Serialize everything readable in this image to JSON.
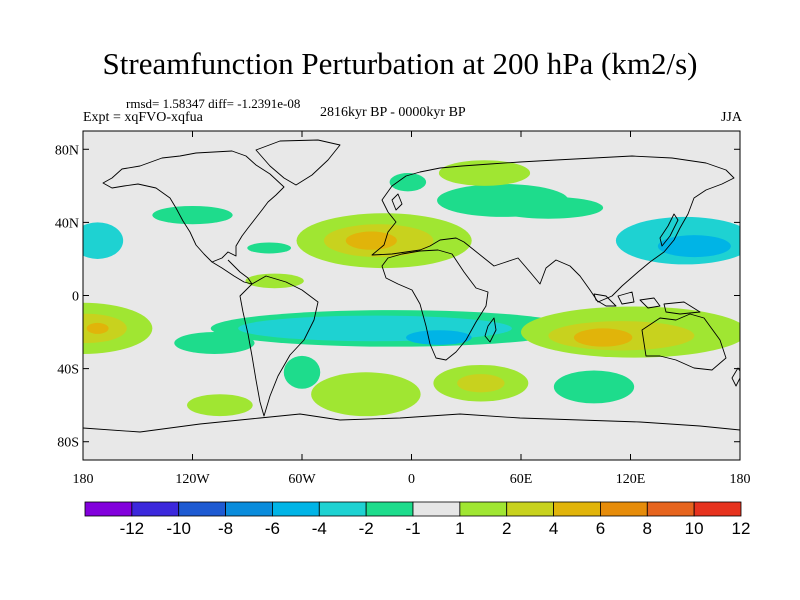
{
  "title": "Streamfunction Perturbation at 200 hPa (km2/s)",
  "stats": "rmsd= 1.58347 diff= -1.2391e-08",
  "experiment": "Expt = xqFVO-xqfua",
  "period": "2816kyr BP - 0000kyr BP",
  "season": "JJA",
  "colors": {
    "background": "#e8e8e8",
    "coastline": "#000000",
    "frame": "#000000"
  },
  "map": {
    "lon_range": [
      -180,
      180
    ],
    "lat_range": [
      -90,
      90
    ],
    "lat_ticks": [
      {
        "value": 80,
        "label": "80N"
      },
      {
        "value": 40,
        "label": "40N"
      },
      {
        "value": 0,
        "label": "0"
      },
      {
        "value": -40,
        "label": "40S"
      },
      {
        "value": -80,
        "label": "80S"
      }
    ],
    "lon_ticks": [
      {
        "value": -180,
        "label": "180"
      },
      {
        "value": -120,
        "label": "120W"
      },
      {
        "value": -60,
        "label": "60W"
      },
      {
        "value": 0,
        "label": "0"
      },
      {
        "value": 60,
        "label": "60E"
      },
      {
        "value": 120,
        "label": "120E"
      },
      {
        "value": 180,
        "label": "180"
      }
    ]
  },
  "colorbar": {
    "bins": [
      {
        "color": "#8200dc"
      },
      {
        "color": "#3c28dc"
      },
      {
        "color": "#1e5ad2"
      },
      {
        "color": "#0a8cdc"
      },
      {
        "color": "#00b4e6"
      },
      {
        "color": "#1ed2d2"
      },
      {
        "color": "#1edc8c"
      },
      {
        "color": "#e6e6e6"
      },
      {
        "color": "#a0e632"
      },
      {
        "color": "#c8d21e"
      },
      {
        "color": "#e1b40a"
      },
      {
        "color": "#e68c0a"
      },
      {
        "color": "#e6641e"
      },
      {
        "color": "#e6321e"
      }
    ],
    "labels": [
      "-12",
      "-10",
      "-8",
      "-6",
      "-4",
      "-2",
      "-1",
      "1",
      "2",
      "4",
      "6",
      "8",
      "10",
      "12"
    ]
  },
  "chart_data": {
    "type": "contour-map",
    "variable": "Streamfunction Perturbation at 200 hPa",
    "units": "km2/s",
    "levels": [
      -12,
      -10,
      -8,
      -6,
      -4,
      -2,
      -1,
      1,
      2,
      4,
      6,
      8,
      10,
      12
    ],
    "features": [
      {
        "id": "n-atlantic-africa-high",
        "lon": -15,
        "lat": 30,
        "rx": 48,
        "ry": 15,
        "level": 2
      },
      {
        "id": "n-atlantic-africa-high-core",
        "lon": -18,
        "lat": 30,
        "rx": 30,
        "ry": 9,
        "level": 4
      },
      {
        "id": "n-atlantic-africa-high-peak",
        "lon": -22,
        "lat": 30,
        "rx": 14,
        "ry": 5,
        "level": 6
      },
      {
        "id": "eastern-europe-low",
        "lon": 50,
        "lat": 52,
        "rx": 36,
        "ry": 9,
        "level": -1
      },
      {
        "id": "arctic-russia-high",
        "lon": 40,
        "lat": 67,
        "rx": 25,
        "ry": 7,
        "level": 1
      },
      {
        "id": "scandinavia-low",
        "lon": -2,
        "lat": 62,
        "rx": 10,
        "ry": 5,
        "level": -1
      },
      {
        "id": "central-asia-low",
        "lon": 75,
        "lat": 48,
        "rx": 30,
        "ry": 6,
        "level": -1
      },
      {
        "id": "nw-pacific-low",
        "lon": 150,
        "lat": 30,
        "rx": 38,
        "ry": 13,
        "level": -2
      },
      {
        "id": "nw-pacific-low-core",
        "lon": 155,
        "lat": 27,
        "rx": 20,
        "ry": 6,
        "level": -4
      },
      {
        "id": "ne-pacific-low",
        "lon": -172,
        "lat": 30,
        "rx": 14,
        "ry": 10,
        "level": -2
      },
      {
        "id": "north-america-low",
        "lon": -120,
        "lat": 44,
        "rx": 22,
        "ry": 5,
        "level": -1
      },
      {
        "id": "caribbean-low",
        "lon": -78,
        "lat": 26,
        "rx": 12,
        "ry": 3,
        "level": -1
      },
      {
        "id": "tropical-america-high",
        "lon": -75,
        "lat": 8,
        "rx": 16,
        "ry": 4,
        "level": 2
      },
      {
        "id": "sh-subtropical-low-band",
        "lon": -10,
        "lat": -18,
        "rx": 100,
        "ry": 10,
        "level": -1
      },
      {
        "id": "sh-subtropical-low-core",
        "lon": -20,
        "lat": -18,
        "rx": 75,
        "ry": 7,
        "level": -2
      },
      {
        "id": "south-atlantic-low-core",
        "lon": 15,
        "lat": -23,
        "rx": 18,
        "ry": 4,
        "level": -4
      },
      {
        "id": "south-pacific-high",
        "lon": -180,
        "lat": -18,
        "rx": 38,
        "ry": 14,
        "level": 2
      },
      {
        "id": "south-pacific-high-core",
        "lon": -178,
        "lat": -18,
        "rx": 22,
        "ry": 8,
        "level": 4
      },
      {
        "id": "south-pacific-high-peak",
        "lon": -172,
        "lat": -18,
        "rx": 6,
        "ry": 3,
        "level": 6
      },
      {
        "id": "australia-high",
        "lon": 122,
        "lat": -20,
        "rx": 62,
        "ry": 14,
        "level": 2
      },
      {
        "id": "australia-high-core",
        "lon": 115,
        "lat": -22,
        "rx": 40,
        "ry": 8,
        "level": 4
      },
      {
        "id": "australia-high-peak",
        "lon": 105,
        "lat": -23,
        "rx": 16,
        "ry": 5,
        "level": 6
      },
      {
        "id": "south-indian-high",
        "lon": 38,
        "lat": -48,
        "rx": 26,
        "ry": 10,
        "level": 2
      },
      {
        "id": "south-indian-high-core",
        "lon": 38,
        "lat": -48,
        "rx": 13,
        "ry": 5,
        "level": 4
      },
      {
        "id": "southern-ocean-low",
        "lon": 100,
        "lat": -50,
        "rx": 22,
        "ry": 9,
        "level": -1
      },
      {
        "id": "southern-ocean-south-atlantic-high",
        "lon": -25,
        "lat": -54,
        "rx": 30,
        "ry": 12,
        "level": 2
      },
      {
        "id": "south-america-low",
        "lon": -60,
        "lat": -42,
        "rx": 10,
        "ry": 9,
        "level": -1
      },
      {
        "id": "se-pacific-high",
        "lon": -105,
        "lat": -60,
        "rx": 18,
        "ry": 6,
        "level": 2
      },
      {
        "id": "east-pacific-low",
        "lon": -108,
        "lat": -26,
        "rx": 22,
        "ry": 6,
        "level": -1
      }
    ]
  }
}
